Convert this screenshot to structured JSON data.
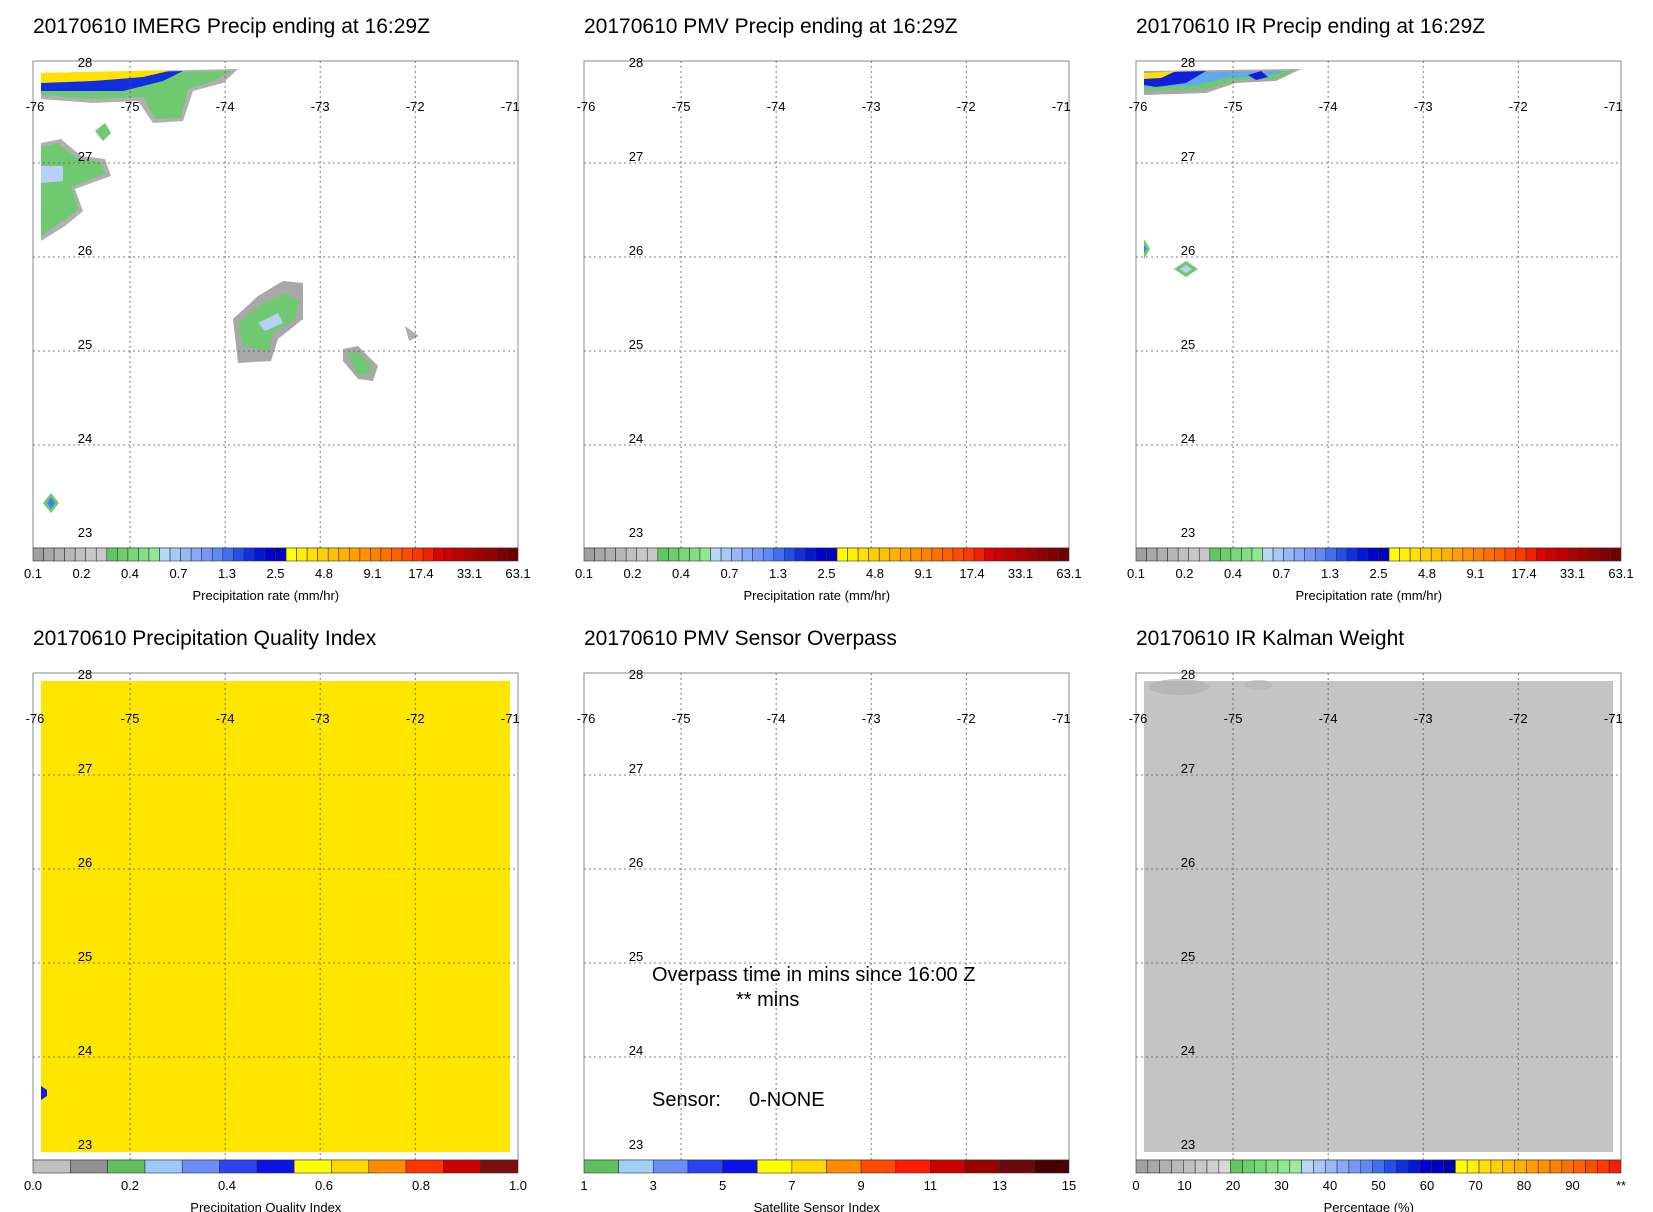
{
  "panels": [
    {
      "title": "20170610 IMERG Precip ending at 16:29Z",
      "field": "precip",
      "x_ticks": [
        "-76",
        "-75",
        "-74",
        "-73",
        "-72",
        "-71"
      ],
      "y_ticks": [
        "28",
        "27",
        "26",
        "25",
        "24",
        "23"
      ],
      "colorbar": "precip"
    },
    {
      "title": "20170610 PMV Precip ending at 16:29Z",
      "field": "none",
      "x_ticks": [
        "-76",
        "-75",
        "-74",
        "-73",
        "-72",
        "-71"
      ],
      "y_ticks": [
        "28",
        "27",
        "26",
        "25",
        "24",
        "23"
      ],
      "colorbar": "precip"
    },
    {
      "title": "20170610 IR Precip ending at 16:29Z",
      "field": "ir_precip",
      "x_ticks": [
        "-76",
        "-75",
        "-74",
        "-73",
        "-72",
        "-71"
      ],
      "y_ticks": [
        "28",
        "27",
        "26",
        "25",
        "24",
        "23"
      ],
      "colorbar": "precip"
    },
    {
      "title": "20170610 Precipitation Quality Index",
      "field": "quality",
      "fill_color": "#ffe600",
      "x_ticks": [
        "-76",
        "-75",
        "-74",
        "-73",
        "-72",
        "-71"
      ],
      "y_ticks": [
        "28",
        "27",
        "26",
        "25",
        "24",
        "23"
      ],
      "colorbar": "quality"
    },
    {
      "title": "20170610 PMV Sensor Overpass",
      "field": "overpass",
      "x_ticks": [
        "-76",
        "-75",
        "-74",
        "-73",
        "-72",
        "-71"
      ],
      "y_ticks": [
        "28",
        "27",
        "26",
        "25",
        "24",
        "23"
      ],
      "colorbar": "sensor",
      "overpass_text": "Overpass time in mins since 16:00 Z",
      "mins_text": "** mins",
      "sensor_label": "Sensor:",
      "sensor_value": "0-NONE"
    },
    {
      "title": "20170610 IR Kalman Weight",
      "field": "kalman",
      "fill_color": "#c4c4c4",
      "x_ticks": [
        "-76",
        "-75",
        "-74",
        "-73",
        "-72",
        "-71"
      ],
      "y_ticks": [
        "28",
        "27",
        "26",
        "25",
        "24",
        "23"
      ],
      "colorbar": "percent"
    }
  ],
  "colorbars": {
    "precip": {
      "label": "Precipitation rate (mm/hr)",
      "tick_labels": [
        "0.1",
        "0.2",
        "0.4",
        "0.7",
        "1.3",
        "2.5",
        "4.8",
        "9.1",
        "17.4",
        "33.1",
        "63.1"
      ],
      "colors": [
        "#a0a0a0",
        "#a8a8a8",
        "#b0b0b0",
        "#b8b8b8",
        "#c0c0c0",
        "#c8c8c8",
        "#c8c8c8",
        "#60c860",
        "#6ccf6c",
        "#78d878",
        "#84df84",
        "#90e890",
        "#b8d8f8",
        "#a8c8f8",
        "#98b8f8",
        "#88a8f8",
        "#7898f8",
        "#6088f8",
        "#4070f0",
        "#2050e8",
        "#1030e0",
        "#0018d8",
        "#0000d0",
        "#0000c0",
        "#ffff00",
        "#fff000",
        "#ffe000",
        "#ffd000",
        "#ffc000",
        "#ffb000",
        "#ffa000",
        "#ff9000",
        "#ff8000",
        "#ff7000",
        "#ff6000",
        "#ff4c00",
        "#ff3800",
        "#f02000",
        "#e00000",
        "#d00000",
        "#c00000",
        "#b00000",
        "#a00000",
        "#900000",
        "#800000",
        "#700000"
      ]
    },
    "quality": {
      "label": "Precipitation Quality Index",
      "tick_labels": [
        "0.0",
        "0.2",
        "0.4",
        "0.6",
        "0.8",
        "1.0"
      ],
      "colors": [
        "#c0c0c0",
        "#909090",
        "#60c060",
        "#9ccaf8",
        "#6a8ef8",
        "#2b44f0",
        "#0a12e8",
        "#ffff00",
        "#ffd800",
        "#ff8c00",
        "#ff3600",
        "#cc0000",
        "#7a1010"
      ]
    },
    "sensor": {
      "label": "Satellite Sensor Index",
      "tick_labels": [
        "1",
        "3",
        "5",
        "7",
        "9",
        "11",
        "13",
        "15"
      ],
      "colors": [
        "#60c060",
        "#a0d0f8",
        "#6a8ef8",
        "#2b44f0",
        "#0a12e8",
        "#ffff00",
        "#ffd800",
        "#ff8c00",
        "#ff4a00",
        "#ff1a00",
        "#cc0000",
        "#9a0000",
        "#6a0a0a",
        "#4a0000"
      ]
    },
    "percent": {
      "label": "Percentage (%)",
      "tick_labels": [
        "0",
        "10",
        "20",
        "30",
        "40",
        "50",
        "60",
        "70",
        "80",
        "90",
        "**"
      ],
      "colors": [
        "#a0a0a0",
        "#a8a8a8",
        "#b0b0b0",
        "#b8b8b8",
        "#c0c0c0",
        "#c8c8c8",
        "#d0d0d0",
        "#d8d8d8",
        "#60c860",
        "#6ccf6c",
        "#78d878",
        "#84df84",
        "#90e890",
        "#a0e8a0",
        "#b8d8f8",
        "#a8c8f8",
        "#98b8f8",
        "#88a8f8",
        "#7898f8",
        "#6088f8",
        "#4070f0",
        "#2050e8",
        "#1030e0",
        "#0018d8",
        "#0000d0",
        "#0000c0",
        "#0000a8",
        "#ffff00",
        "#fff000",
        "#ffe000",
        "#ffd000",
        "#ffc000",
        "#ffb000",
        "#ffa000",
        "#ff9000",
        "#ff8000",
        "#ff7000",
        "#ff6000",
        "#ff4c00",
        "#ff3800",
        "#f02000"
      ]
    }
  }
}
